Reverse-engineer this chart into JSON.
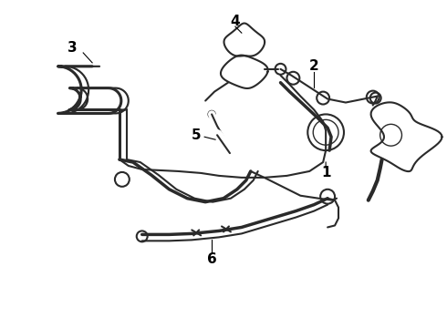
{
  "bg_color": "#ffffff",
  "line_color": "#2a2a2a",
  "figsize": [
    4.9,
    3.6
  ],
  "dpi": 100,
  "lw_main": 1.5,
  "lw_thick": 2.5,
  "lw_thin": 1.0,
  "label_fontsize": 11
}
